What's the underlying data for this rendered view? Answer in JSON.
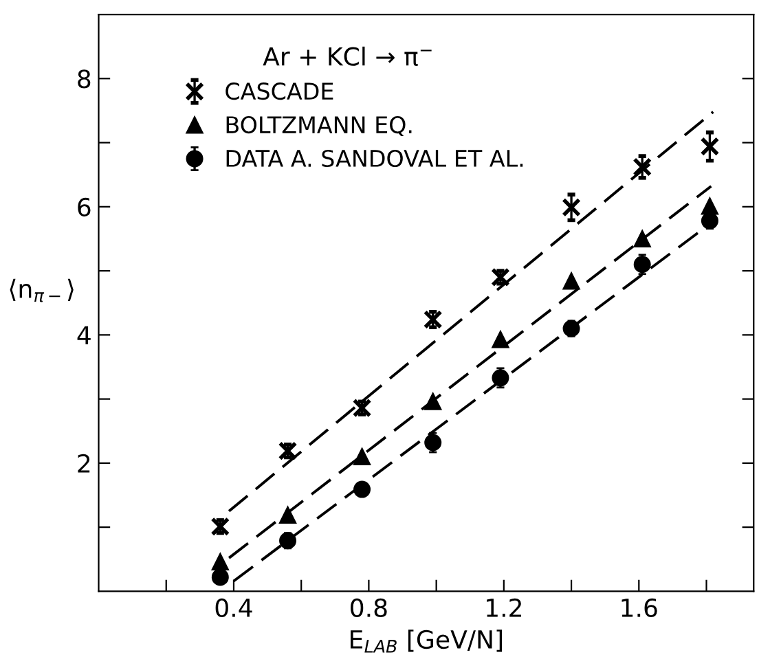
{
  "chart_data": {
    "type": "scatter",
    "xlabel": "E$_{LAB}$ [GeV/N]",
    "ylabel": "⟨n$_{π−}$⟩",
    "legend_title": "Ar + KCl → π$^{−}$",
    "x": [
      0.36,
      0.56,
      0.78,
      0.99,
      1.19,
      1.4,
      1.61,
      1.81
    ],
    "series": [
      {
        "name": "CASCADE",
        "color": "#000000",
        "marker": "cross",
        "values": [
          1.01,
          2.19,
          2.86,
          4.24,
          4.9,
          5.99,
          6.62,
          6.94
        ],
        "errors": [
          0.1,
          0.1,
          0.1,
          0.12,
          0.1,
          0.2,
          0.17,
          0.22
        ]
      },
      {
        "name": "BOLTZMANN EQ.",
        "color": "#000000",
        "marker": "triangle",
        "values": [
          0.46,
          1.19,
          2.1,
          2.96,
          3.93,
          4.84,
          5.5,
          6.01
        ]
      },
      {
        "name": "DATA A. SANDOVAL ET AL.",
        "color": "#000000",
        "marker": "circle",
        "values": [
          0.22,
          0.79,
          1.59,
          2.32,
          3.33,
          4.1,
          5.1,
          5.78
        ],
        "errors": [
          0.1,
          0.12,
          0.1,
          0.15,
          0.15,
          0.12,
          0.15,
          0.12
        ]
      },
      {
        "type": "line",
        "color": "#000000",
        "line_style": "dashed",
        "x": [
          0.386,
          1.82
        ],
        "values": [
          1.25,
          7.48
        ]
      },
      {
        "type": "line",
        "color": "#000000",
        "line_style": "dashed",
        "x": [
          0.386,
          1.814
        ],
        "values": [
          0.52,
          6.32
        ]
      },
      {
        "type": "line",
        "color": "#000000",
        "line_style": "dashed",
        "x": [
          0.4,
          1.807
        ],
        "values": [
          0.16,
          5.72
        ]
      }
    ],
    "xlim": [
      0,
      1.94
    ],
    "ylim": [
      0,
      9
    ],
    "xticks": [
      {
        "value": 0.2,
        "label": null
      },
      0.4,
      {
        "value": 0.6,
        "label": null
      },
      0.8,
      {
        "value": 1.0,
        "label": null
      },
      1.2,
      {
        "value": 1.4,
        "label": null
      },
      1.6,
      {
        "value": 1.8,
        "label": null
      }
    ],
    "yticks": [
      {
        "value": 1,
        "label": null
      },
      2,
      {
        "value": 3,
        "label": null
      },
      4,
      {
        "value": 5,
        "label": null
      },
      6,
      {
        "value": 7,
        "label": null
      },
      8
    ],
    "grid": false,
    "legend": "top left"
  }
}
